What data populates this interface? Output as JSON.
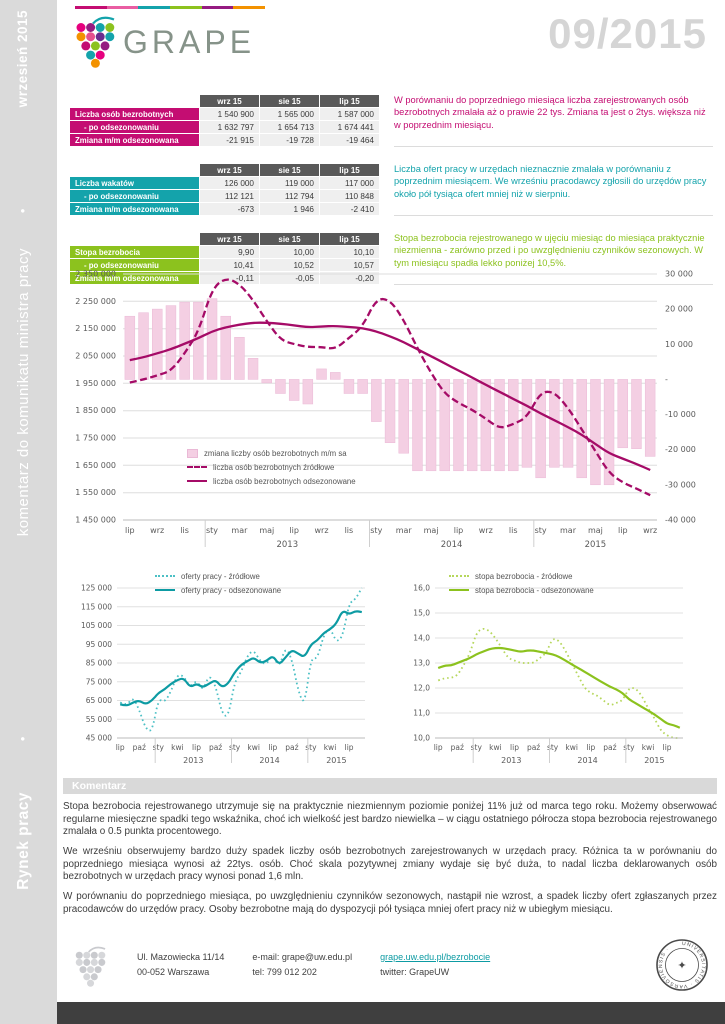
{
  "meta": {
    "brand": "GRAPE",
    "issue": "09/2015"
  },
  "sidebar": {
    "top": "wrzesień 2015",
    "bullet": "•",
    "middle": "komentarz do komunikatu ministra pracy",
    "bottom": "Rynek pracy"
  },
  "colors": {
    "magenta": "#c40d72",
    "magenta_line": "#a50b67",
    "pink_bar": "#f4cfe3",
    "teal": "#14a3ab",
    "teal_line": "#0d9ba3",
    "green": "#8cc21e",
    "header_gray": "#595959",
    "issue_gray": "#d5d5d5"
  },
  "tables": [
    {
      "accent": "#c40d72",
      "columns": [
        "wrz 15",
        "sie 15",
        "lip 15"
      ],
      "rows": [
        {
          "label": "Liczba osób bezrobotnych",
          "values": [
            "1 540 900",
            "1 565 000",
            "1 587 000"
          ]
        },
        {
          "label": "- po odsezonowaniu",
          "values": [
            "1 632 797",
            "1 654 713",
            "1 674 441"
          ]
        },
        {
          "label": "Zmiana m/m odsezonowana",
          "values": [
            "-21 915",
            "-19 728",
            "-19 464"
          ]
        }
      ],
      "comment": "W porównaniu do poprzedniego miesiąca liczba zarejestrowanych osób bezrobotnych zmalała aż o prawie 22 tys. Zmiana ta jest o 2tys. większa niż w poprzednim miesiącu."
    },
    {
      "accent": "#14a3ab",
      "columns": [
        "wrz 15",
        "sie 15",
        "lip 15"
      ],
      "rows": [
        {
          "label": "Liczba wakatów",
          "values": [
            "126 000",
            "119 000",
            "117 000"
          ]
        },
        {
          "label": "- po odsezonowaniu",
          "values": [
            "112 121",
            "112 794",
            "110 848"
          ]
        },
        {
          "label": "Zmiana m/m odsezonowana",
          "values": [
            "-673",
            "1 946",
            "-2 410"
          ]
        }
      ],
      "comment": "Liczba ofert pracy w urzędach nieznacznie zmalała w porównaniu z poprzednim miesiącem. We wrześniu pracodawcy zgłosili do urzędów pracy około pół tysiąca ofert mniej niż w sierpniu."
    },
    {
      "accent": "#8cc21e",
      "columns": [
        "wrz 15",
        "sie 15",
        "lip 15"
      ],
      "rows": [
        {
          "label": "Stopa bezrobocia",
          "values": [
            "9,90",
            "10,00",
            "10,10"
          ]
        },
        {
          "label": "- po odsezonowaniu",
          "values": [
            "10,41",
            "10,52",
            "10,57"
          ]
        },
        {
          "label": "Zmiana m/m odsezonowana",
          "values": [
            "-0,11",
            "-0,05",
            "-0,20"
          ]
        }
      ],
      "comment": "Stopa bezrobocia rejestrowanego w ujęciu miesiąc do miesiąca praktycznie niezmienna - zarówno przed i po uwzględnieniu czynników sezonowych. W tym miesiącu spadła lekko poniżej 10,5%."
    }
  ],
  "chart_data": [
    {
      "id": "unemployed",
      "type": "bar+line",
      "left_axis": {
        "min": 1450000,
        "max": 2350000,
        "step": 100000
      },
      "right_axis": {
        "min": -40000,
        "max": 30000,
        "step": 10000
      },
      "left_ticks": [
        "2 350 000",
        "2 250 000",
        "2 150 000",
        "2 050 000",
        "1 950 000",
        "1 850 000",
        "1 750 000",
        "1 650 000",
        "1 550 000",
        "1 450 000"
      ],
      "right_ticks": [
        "30 000",
        "20 000",
        "10 000",
        "-",
        "-10 000",
        "-20 000",
        "-30 000",
        "-40 000"
      ],
      "x_labels_shown": [
        "lip",
        "wrz",
        "lis",
        "sty",
        "mar",
        "maj",
        "lip",
        "wrz",
        "lis",
        "sty",
        "mar",
        "maj",
        "lip",
        "wrz",
        "lis",
        "sty",
        "mar",
        "maj",
        "lip",
        "wrz"
      ],
      "label_every": 2,
      "year_labels": [
        "2013",
        "2014",
        "2015"
      ],
      "year_centers": [
        11.5,
        23.5,
        34
      ],
      "year_boundaries": [
        6,
        18,
        30
      ],
      "bars": {
        "name": "zmiana liczby osób bezrobotnych m/m sa",
        "color": "#f4cfe3",
        "values": [
          18000,
          19000,
          20000,
          21000,
          22000,
          22000,
          23000,
          18000,
          12000,
          6000,
          -1000,
          -4000,
          -6000,
          -7000,
          3000,
          2000,
          -4000,
          -4000,
          -12000,
          -18000,
          -21000,
          -26000,
          -26000,
          -26000,
          -26000,
          -26000,
          -26000,
          -26000,
          -26000,
          -25000,
          -28000,
          -25000,
          -25000,
          -28000,
          -30000,
          -30000,
          -19464,
          -19728,
          -21915
        ]
      },
      "series": [
        {
          "name": "liczba osób bezrobotnych źródłowe",
          "style": "dashed",
          "color": "#a50b67",
          "values": [
            1953000,
            1964000,
            1979000,
            1995000,
            2059000,
            2137000,
            2296000,
            2337000,
            2314000,
            2255000,
            2177000,
            2109000,
            2093000,
            2083000,
            2083000,
            2075000,
            2116000,
            2158000,
            2260000,
            2256000,
            2182000,
            2079000,
            1987000,
            1912000,
            1878000,
            1853000,
            1821000,
            1784000,
            1800000,
            1825000,
            1919000,
            1919000,
            1861000,
            1782000,
            1702000,
            1622000,
            1587000,
            1565000,
            1540900
          ]
        },
        {
          "name": "liczba osób bezrobotnych odsezonowane",
          "style": "solid",
          "color": "#a50b67",
          "values": [
            2035000,
            2045000,
            2060000,
            2075000,
            2095000,
            2115000,
            2140000,
            2155000,
            2165000,
            2172000,
            2172000,
            2168000,
            2162000,
            2155000,
            2158000,
            2160000,
            2156000,
            2152000,
            2140000,
            2122000,
            2101000,
            2075000,
            2049000,
            2023000,
            1997000,
            1971000,
            1945000,
            1919000,
            1893000,
            1868000,
            1840000,
            1815000,
            1790000,
            1762000,
            1728000,
            1693905,
            1674441,
            1654713,
            1632797
          ]
        }
      ]
    },
    {
      "id": "offers",
      "type": "line",
      "y_axis": {
        "min": 45000,
        "max": 125000,
        "step": 10000
      },
      "ticks": [
        "125 000",
        "115 000",
        "105 000",
        "95 000",
        "85 000",
        "75 000",
        "65 000",
        "55 000",
        "45 000"
      ],
      "x_labels_shown": [
        "lip",
        "paź",
        "sty",
        "kwi",
        "lip",
        "paź",
        "sty",
        "kwi",
        "lip",
        "paź",
        "sty",
        "kwi",
        "lip"
      ],
      "label_every": 3,
      "year_labels": [
        "2013",
        "2014",
        "2015"
      ],
      "year_centers": [
        11.5,
        23.5,
        34
      ],
      "year_boundaries": [
        6,
        18,
        30
      ],
      "series": [
        {
          "name": "oferty pracy  - źródłowe",
          "style": "dotted",
          "color": "#4cc0c5",
          "values": [
            64000,
            62000,
            67000,
            60000,
            50000,
            48000,
            66000,
            64000,
            70000,
            79000,
            78000,
            72000,
            76000,
            70000,
            79000,
            73000,
            58000,
            56000,
            75000,
            80000,
            89000,
            92000,
            86000,
            84000,
            90000,
            82000,
            94000,
            87000,
            70000,
            62000,
            88000,
            87000,
            100000,
            104000,
            96000,
            99000,
            117000,
            119000,
            126000
          ]
        },
        {
          "name": "oferty pracy  - odsezonowane",
          "style": "solid",
          "color": "#0d9ba3",
          "values": [
            63000,
            62000,
            64000,
            65000,
            63000,
            65000,
            69000,
            71000,
            74000,
            76000,
            77000,
            72000,
            74000,
            72000,
            74000,
            76000,
            72000,
            74000,
            80000,
            84000,
            86000,
            88000,
            85000,
            86000,
            89000,
            84000,
            88000,
            92000,
            90000,
            88000,
            95000,
            97000,
            101000,
            103000,
            106000,
            113258,
            110848,
            112794,
            112121
          ]
        }
      ]
    },
    {
      "id": "rate",
      "type": "line",
      "y_axis": {
        "min": 10.0,
        "max": 16.0,
        "step": 1.0
      },
      "ticks": [
        "16,0",
        "15,0",
        "14,0",
        "13,0",
        "12,0",
        "11,0",
        "10,0"
      ],
      "x_labels_shown": [
        "lip",
        "paź",
        "sty",
        "kwi",
        "lip",
        "paź",
        "sty",
        "kwi",
        "lip",
        "paź",
        "sty",
        "kwi",
        "lip"
      ],
      "label_every": 3,
      "year_labels": [
        "2013",
        "2014",
        "2015"
      ],
      "year_centers": [
        11.5,
        23.5,
        34
      ],
      "year_boundaries": [
        6,
        18,
        30
      ],
      "series": [
        {
          "name": "stopa bezrobocia  - źródłowe",
          "style": "dotted",
          "color": "#b6d75c",
          "values": [
            12.3,
            12.4,
            12.4,
            12.5,
            12.9,
            13.4,
            14.2,
            14.4,
            14.3,
            14.0,
            13.6,
            13.2,
            13.1,
            13.0,
            13.0,
            13.0,
            13.2,
            13.4,
            14.0,
            13.9,
            13.5,
            13.0,
            12.5,
            12.0,
            11.8,
            11.7,
            11.5,
            11.3,
            11.4,
            11.5,
            12.0,
            12.0,
            11.7,
            11.2,
            10.8,
            10.3,
            10.1,
            10.0,
            9.9
          ]
        },
        {
          "name": "stopa bezrobocia  - odsezonowane",
          "style": "solid",
          "color": "#8cc21e",
          "values": [
            12.8,
            12.9,
            12.9,
            13.0,
            13.1,
            13.2,
            13.35,
            13.45,
            13.55,
            13.6,
            13.6,
            13.55,
            13.5,
            13.45,
            13.5,
            13.5,
            13.45,
            13.4,
            13.35,
            13.25,
            13.1,
            12.95,
            12.8,
            12.65,
            12.5,
            12.35,
            12.2,
            12.05,
            11.95,
            11.8,
            11.55,
            11.4,
            11.25,
            11.1,
            10.95,
            10.77,
            10.57,
            10.52,
            10.41
          ]
        }
      ]
    }
  ],
  "comment_section": {
    "title": "Komentarz",
    "paragraphs": [
      "Stopa bezrobocia rejestrowanego utrzymuje się na praktycznie niezmiennym poziomie poniżej 11% już od marca tego roku. Możemy obserwować regularne miesięczne spadki tego wskaźnika, choć ich wielkość jest bardzo niewielka – w ciągu ostatniego półrocza stopa bezrobocia rejestrowanego zmalała o 0.5 punkta procentowego.",
      "We wrześniu obserwujemy bardzo duży spadek liczby osób bezrobotnych zarejestrowanych w urzędach pracy. Różnica ta w porównaniu do poprzedniego miesiąca wynosi aż 22tys. osób. Choć skala pozytywnej zmiany wydaje się być duża, to nadal liczba deklarowanych osób bezrobotnych w urzędach pracy wynosi ponad 1,6 mln.",
      "W porównaniu do poprzedniego miesiąca, po uwzględnieniu czynników sezonowych, nastąpił nie wzrost, a spadek liczby ofert zgłaszanych przez pracodawców do urzędów pracy. Osoby bezrobotne mają do dyspozycji pół tysiąca mniej ofert pracy niż w ubiegłym miesiącu."
    ]
  },
  "footer": {
    "address_line1": "Ul. Mazowiecka 11/14",
    "address_line2": "00-052 Warszawa",
    "email": "e-mail: grape@uw.edu.pl",
    "phone": "tel: 799 012 202",
    "link": "grape.uw.edu.pl/bezrobocie",
    "twitter": "twitter: GrapeUW",
    "seal_text": "UNIVERSITATIS · VARSOVIENSIS ·"
  }
}
